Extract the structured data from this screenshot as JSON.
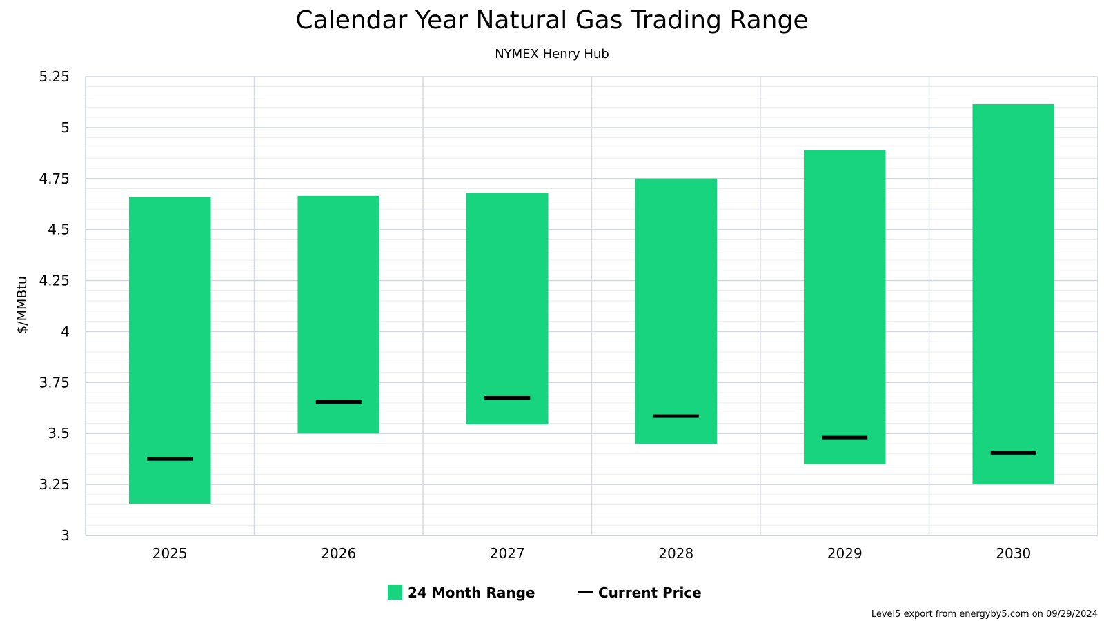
{
  "chart_data": {
    "type": "bar",
    "title": "Calendar Year Natural Gas Trading Range",
    "subtitle": "NYMEX Henry Hub",
    "xlabel": "",
    "ylabel": "$/MMBtu",
    "ylim": [
      3,
      5.25
    ],
    "yticks": [
      3,
      3.25,
      3.5,
      3.75,
      4,
      4.25,
      4.5,
      4.75,
      5,
      5.25
    ],
    "ytick_labels": [
      "3",
      "3.25",
      "3.5",
      "3.75",
      "4",
      "4.25",
      "4.5",
      "4.75",
      "5",
      "5.25"
    ],
    "y_minor_step": 0.05,
    "grid": true,
    "legend_position": "bottom",
    "categories": [
      "2025",
      "2026",
      "2027",
      "2028",
      "2029",
      "2030"
    ],
    "series": [
      {
        "name": "24 Month Range",
        "kind": "range",
        "color": "#19d47f",
        "low": [
          3.155,
          3.5,
          3.545,
          3.45,
          3.35,
          3.25
        ],
        "high": [
          4.66,
          4.665,
          4.68,
          4.75,
          4.89,
          5.115
        ]
      },
      {
        "name": "Current Price",
        "kind": "marker",
        "color": "#000000",
        "values": [
          3.375,
          3.655,
          3.675,
          3.585,
          3.48,
          3.405
        ]
      }
    ],
    "credit": "Level5 export from energyby5.com on 09/29/2024"
  }
}
